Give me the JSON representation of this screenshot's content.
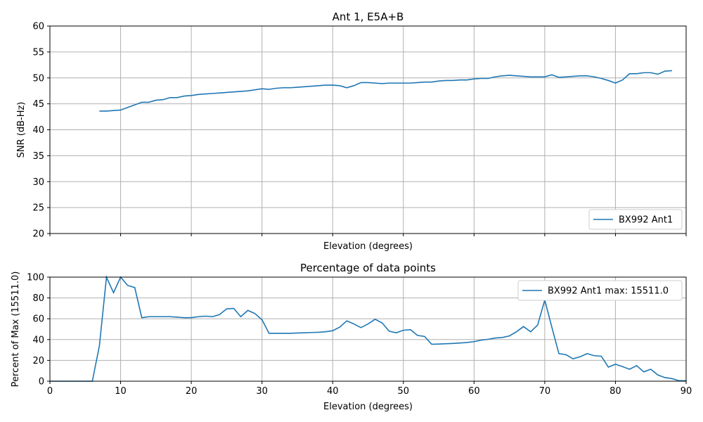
{
  "chart_data": [
    {
      "type": "line",
      "title": "Ant 1, E5A+B",
      "xlabel": "Elevation (degrees)",
      "ylabel": "SNR (dB-Hz)",
      "xlim": [
        0,
        90
      ],
      "ylim": [
        20,
        60
      ],
      "x_ticks": [
        0,
        10,
        20,
        30,
        40,
        50,
        60,
        70,
        80,
        90
      ],
      "y_ticks": [
        20,
        25,
        30,
        35,
        40,
        45,
        50,
        55,
        60
      ],
      "show_x_tick_labels": false,
      "grid": true,
      "legend_position": "lower right",
      "series": [
        {
          "name": "BX992 Ant1",
          "color": "#1f77b4",
          "x": [
            7,
            8,
            9,
            10,
            11,
            12,
            13,
            14,
            15,
            16,
            17,
            18,
            19,
            20,
            21,
            22,
            23,
            24,
            25,
            26,
            27,
            28,
            29,
            30,
            31,
            32,
            33,
            34,
            35,
            36,
            37,
            38,
            39,
            40,
            41,
            42,
            43,
            44,
            45,
            46,
            47,
            48,
            49,
            50,
            51,
            52,
            53,
            54,
            55,
            56,
            57,
            58,
            59,
            60,
            61,
            62,
            63,
            64,
            65,
            66,
            67,
            68,
            69,
            70,
            71,
            72,
            73,
            74,
            75,
            76,
            77,
            78,
            79,
            80,
            81,
            82,
            83,
            84,
            85,
            86,
            87,
            88
          ],
          "y": [
            43.6,
            43.6,
            43.7,
            43.8,
            44.3,
            44.8,
            45.3,
            45.3,
            45.7,
            45.8,
            46.2,
            46.2,
            46.5,
            46.6,
            46.8,
            46.9,
            47.0,
            47.1,
            47.2,
            47.3,
            47.4,
            47.5,
            47.7,
            47.9,
            47.8,
            48.0,
            48.1,
            48.1,
            48.2,
            48.3,
            48.4,
            48.5,
            48.6,
            48.6,
            48.5,
            48.1,
            48.5,
            49.1,
            49.1,
            49.0,
            48.9,
            49.0,
            49.0,
            49.0,
            49.0,
            49.1,
            49.2,
            49.2,
            49.4,
            49.5,
            49.5,
            49.6,
            49.6,
            49.8,
            49.9,
            49.9,
            50.2,
            50.4,
            50.5,
            50.4,
            50.3,
            50.2,
            50.2,
            50.2,
            50.6,
            50.1,
            50.2,
            50.3,
            50.4,
            50.4,
            50.2,
            49.9,
            49.5,
            49.0,
            49.6,
            50.8,
            50.8,
            51.0,
            51.0,
            50.7,
            51.3,
            51.4
          ]
        }
      ]
    },
    {
      "type": "line",
      "title": "Percentage of data points",
      "xlabel": "Elevation (degrees)",
      "ylabel": "Percent of Max (15511.0)",
      "xlim": [
        0,
        90
      ],
      "ylim": [
        0,
        100
      ],
      "x_ticks": [
        0,
        10,
        20,
        30,
        40,
        50,
        60,
        70,
        80,
        90
      ],
      "y_ticks": [
        0,
        20,
        40,
        60,
        80,
        100
      ],
      "show_x_tick_labels": true,
      "grid": true,
      "legend_position": "upper right",
      "series": [
        {
          "name": "BX992 Ant1 max: 15511.0",
          "color": "#1f77b4",
          "x": [
            0,
            1,
            2,
            3,
            4,
            5,
            6,
            7,
            8,
            9,
            10,
            11,
            12,
            13,
            14,
            15,
            16,
            17,
            18,
            19,
            20,
            21,
            22,
            23,
            24,
            25,
            26,
            27,
            28,
            29,
            30,
            31,
            32,
            33,
            34,
            35,
            36,
            37,
            38,
            39,
            40,
            41,
            42,
            43,
            44,
            45,
            46,
            47,
            48,
            49,
            50,
            51,
            52,
            53,
            54,
            55,
            56,
            57,
            58,
            59,
            60,
            61,
            62,
            63,
            64,
            65,
            66,
            67,
            68,
            69,
            70,
            71,
            72,
            73,
            74,
            75,
            76,
            77,
            78,
            79,
            80,
            81,
            82,
            83,
            84,
            85,
            86,
            87,
            88,
            89,
            90
          ],
          "y": [
            0,
            0,
            0,
            0,
            0,
            0,
            0,
            34,
            100,
            85,
            100,
            92,
            90,
            61,
            62,
            62,
            62,
            62,
            61.5,
            61,
            61,
            62,
            62.5,
            62,
            64,
            69.5,
            70,
            62,
            68,
            65,
            59,
            46,
            46,
            46,
            46,
            46.3,
            46.5,
            46.8,
            47,
            47.5,
            48.5,
            52,
            58,
            55,
            51.5,
            55,
            59.5,
            56,
            48,
            46.5,
            49,
            49.5,
            44,
            43,
            35.5,
            35.7,
            36,
            36.3,
            36.7,
            37.2,
            38,
            39.5,
            40.3,
            41.5,
            42,
            43.5,
            47.5,
            52.5,
            47.5,
            54,
            78,
            52,
            26.5,
            25.5,
            21.5,
            23.5,
            26.5,
            24.5,
            24,
            13.5,
            16.3,
            14,
            11.5,
            15,
            9,
            11.5,
            6,
            3.5,
            2.5,
            0.5,
            0.5
          ]
        }
      ]
    }
  ]
}
